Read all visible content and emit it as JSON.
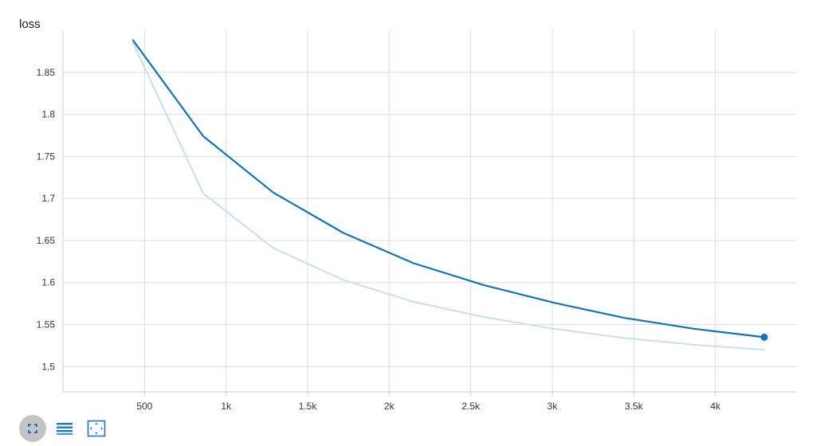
{
  "chart": {
    "title": "loss"
  },
  "chart_data": {
    "type": "line",
    "title": "loss",
    "xlabel": "",
    "ylabel": "",
    "xlim": [
      0,
      4500
    ],
    "ylim": [
      1.47,
      1.9
    ],
    "x_ticks": [
      500,
      1000,
      1500,
      2000,
      2500,
      3000,
      3500,
      4000
    ],
    "x_tick_labels": [
      "500",
      "1k",
      "1.5k",
      "2k",
      "2.5k",
      "3k",
      "3.5k",
      "4k"
    ],
    "y_ticks": [
      1.5,
      1.55,
      1.6,
      1.65,
      1.7,
      1.75,
      1.8,
      1.85
    ],
    "y_tick_labels": [
      "1.5",
      "1.55",
      "1.6",
      "1.65",
      "1.7",
      "1.75",
      "1.8",
      "1.85"
    ],
    "grid": true,
    "series": [
      {
        "role": "raw",
        "color": "#c5dff0",
        "x": [
          430,
          860,
          1290,
          1720,
          2150,
          2580,
          3010,
          3440,
          3870,
          4300
        ],
        "y": [
          1.885,
          1.706,
          1.641,
          1.603,
          1.577,
          1.559,
          1.545,
          1.534,
          1.526,
          1.52
        ]
      },
      {
        "role": "smoothed",
        "color": "#0e76b8",
        "x": [
          430,
          860,
          1290,
          1720,
          2150,
          2580,
          3010,
          3440,
          3870,
          4300
        ],
        "y": [
          1.888,
          1.774,
          1.707,
          1.659,
          1.623,
          1.597,
          1.576,
          1.558,
          1.545,
          1.535
        ]
      }
    ]
  },
  "toolbar": {
    "buttons": [
      {
        "icon": "expand-icon",
        "active": true
      },
      {
        "icon": "list-icon",
        "active": false
      },
      {
        "icon": "fit-domain-icon",
        "active": false
      }
    ],
    "accent": "#1976d2"
  }
}
